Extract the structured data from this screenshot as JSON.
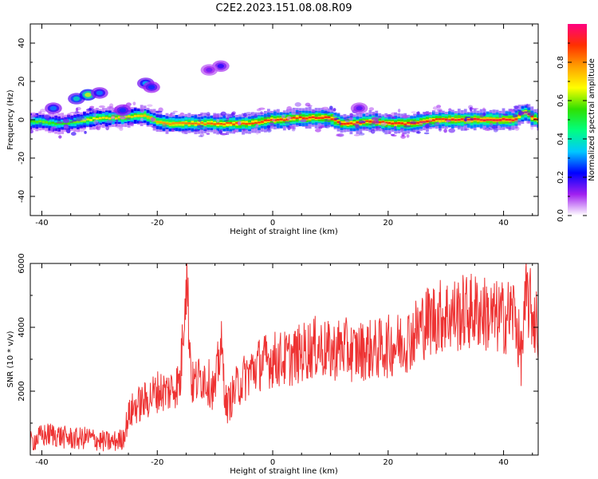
{
  "figure_title": "C2E2.2023.151.08.08.R09",
  "chart_data": [
    {
      "type": "heatmap",
      "title": "C2E2.2023.151.08.08.R09",
      "xlabel": "Height of straight line (km)",
      "ylabel": "Frequency (Hz)",
      "xlim": [
        -42,
        46
      ],
      "ylim": [
        -50,
        50
      ],
      "xticks": [
        -40,
        -20,
        0,
        20,
        40
      ],
      "yticks": [
        -40,
        -20,
        0,
        20,
        40
      ],
      "colorbar": {
        "label": "Normalized spectral amplitude",
        "range": [
          0.0,
          1.0
        ],
        "ticks": [
          0.0,
          0.2,
          0.4,
          0.6,
          0.8
        ],
        "colors": [
          "#ffffff",
          "#a020f0",
          "#0000ff",
          "#00c8ff",
          "#00ff80",
          "#30e000",
          "#ffff00",
          "#ffa000",
          "#ff3000",
          "#ff0080"
        ]
      },
      "ridge": {
        "x": [
          -42,
          -40,
          -38,
          -36,
          -34,
          -32,
          -30,
          -28,
          -26,
          -24,
          -22,
          -20,
          -18,
          -16,
          -14,
          -12,
          -10,
          -8,
          -6,
          -4,
          -2,
          0,
          2,
          4,
          6,
          8,
          10,
          12,
          14,
          16,
          18,
          20,
          22,
          24,
          26,
          28,
          30,
          32,
          34,
          36,
          38,
          40,
          42,
          43,
          44,
          45,
          46
        ],
        "y": [
          -1,
          -1,
          -2,
          -2,
          -1,
          0,
          1,
          1,
          1,
          2,
          2,
          -1,
          -2,
          -2,
          -2,
          -2,
          -2,
          -2,
          -2,
          -2,
          -1,
          0,
          0,
          1,
          1,
          1,
          1,
          -2,
          -2,
          -1,
          -1,
          -2,
          -2,
          -2,
          -1,
          0,
          0,
          0,
          0,
          0,
          0,
          0,
          0,
          3,
          4,
          1,
          0
        ],
        "amplitude": [
          0.55,
          0.6,
          0.55,
          0.55,
          0.6,
          0.65,
          0.7,
          0.7,
          0.72,
          0.7,
          0.75,
          0.78,
          0.78,
          0.8,
          0.82,
          0.82,
          0.84,
          0.85,
          0.86,
          0.86,
          0.88,
          0.88,
          0.88,
          0.88,
          0.9,
          0.9,
          0.9,
          0.9,
          0.88,
          0.88,
          0.88,
          0.9,
          0.9,
          0.9,
          0.9,
          0.88,
          0.9,
          0.92,
          0.93,
          0.93,
          0.93,
          0.93,
          0.92,
          0.8,
          0.85,
          0.9,
          0.85
        ]
      },
      "blobs": [
        {
          "x": -34,
          "y": 11,
          "amplitude": 0.35
        },
        {
          "x": -32,
          "y": 13,
          "amplitude": 0.6
        },
        {
          "x": -30,
          "y": 14,
          "amplitude": 0.25
        },
        {
          "x": -22,
          "y": 19,
          "amplitude": 0.3
        },
        {
          "x": -21,
          "y": 17,
          "amplitude": 0.2
        },
        {
          "x": -9,
          "y": 28,
          "amplitude": 0.15
        },
        {
          "x": -11,
          "y": 26,
          "amplitude": 0.1
        },
        {
          "x": -38,
          "y": 6,
          "amplitude": 0.25
        },
        {
          "x": -26,
          "y": 5,
          "amplitude": 0.2
        },
        {
          "x": 15,
          "y": 6,
          "amplitude": 0.12
        }
      ]
    },
    {
      "type": "line",
      "xlabel": "Height of straight line (km)",
      "ylabel": "SNR (10 * v/v)",
      "xlim": [
        -42,
        46
      ],
      "ylim": [
        0,
        6000
      ],
      "xticks": [
        -40,
        -20,
        0,
        20,
        40
      ],
      "yticks": [
        2000,
        4000,
        6000
      ],
      "color": "#ee3333",
      "series": [
        {
          "name": "SNR",
          "x": [
            -42,
            -40,
            -38,
            -36,
            -34,
            -32,
            -30,
            -28,
            -26,
            -25,
            -24,
            -22,
            -20,
            -18,
            -16,
            -15,
            -14,
            -12,
            -10,
            -9,
            -8,
            -6,
            -4,
            -2,
            0,
            2,
            4,
            6,
            8,
            10,
            12,
            14,
            16,
            18,
            20,
            22,
            24,
            26,
            28,
            30,
            32,
            34,
            36,
            38,
            40,
            42,
            43,
            44,
            45,
            46
          ],
          "y": [
            400,
            600,
            650,
            550,
            500,
            550,
            450,
            400,
            500,
            1200,
            1500,
            1700,
            2000,
            2000,
            2300,
            5900,
            2200,
            2500,
            2000,
            3500,
            1500,
            2200,
            2600,
            2900,
            3000,
            3000,
            3100,
            3300,
            3400,
            3200,
            3400,
            3200,
            3300,
            3300,
            3400,
            3500,
            3700,
            4100,
            4300,
            4400,
            4400,
            4500,
            4500,
            4300,
            4300,
            4500,
            3000,
            5000,
            4400,
            4000
          ]
        }
      ]
    }
  ]
}
